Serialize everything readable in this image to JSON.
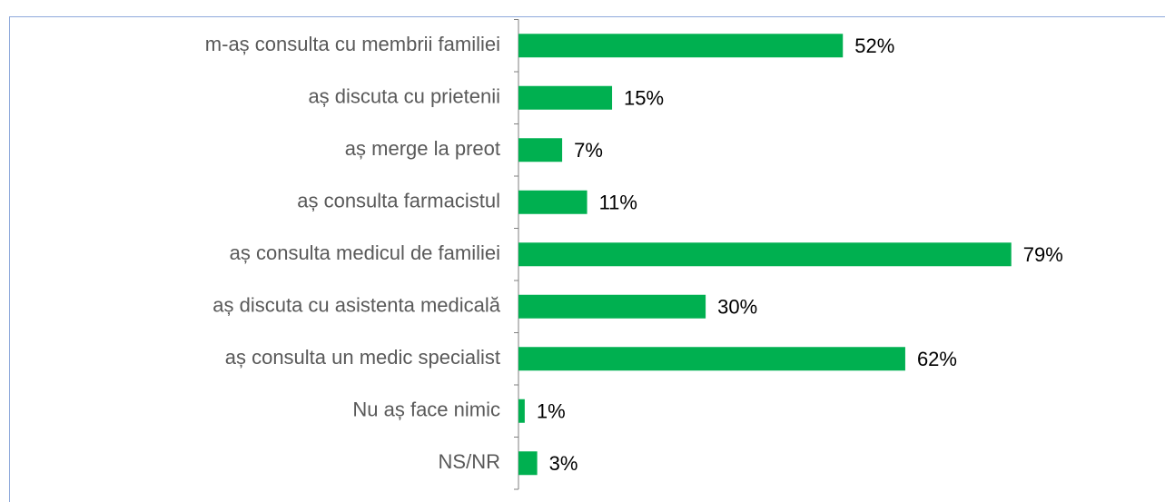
{
  "chart_data": {
    "type": "bar",
    "orientation": "horizontal",
    "categories": [
      "m-aș consulta cu membrii familiei",
      "aș discuta cu prietenii",
      "aș merge la preot",
      "aș consulta farmacistul",
      "aș consulta medicul de familiei",
      "aș discuta cu asistenta medicală",
      "aș consulta un medic specialist",
      "Nu aș face nimic",
      "NS/NR"
    ],
    "values": [
      52,
      15,
      7,
      11,
      79,
      30,
      62,
      1,
      3
    ],
    "value_labels": [
      "52%",
      "15%",
      "7%",
      "11%",
      "79%",
      "30%",
      "62%",
      "1%",
      "3%"
    ],
    "color": "#00b050"
  }
}
